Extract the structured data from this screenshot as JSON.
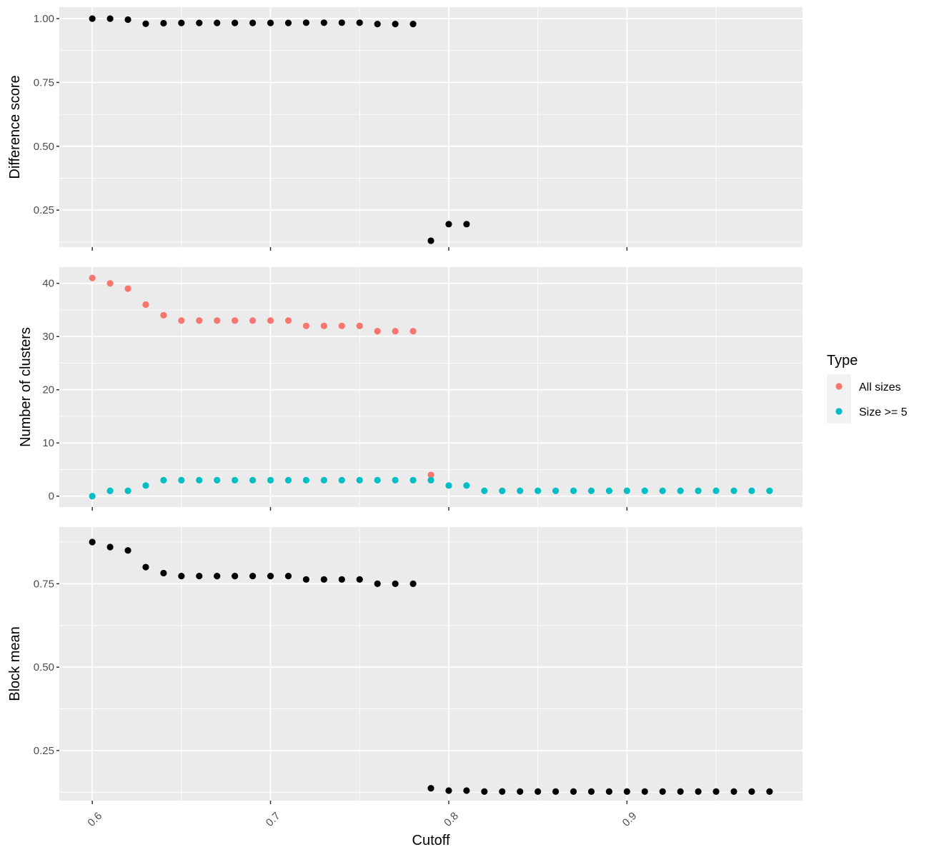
{
  "chart_data": {
    "type": "scatter",
    "xlabel": "Cutoff",
    "x_ticks": [
      0.6,
      0.7,
      0.8,
      0.9
    ],
    "x_tick_labels": [
      "0.6",
      "0.7",
      "0.8",
      "0.9"
    ],
    "xlim": [
      0.5815,
      0.9985
    ],
    "grid": true,
    "panel_background": "#ebebeb",
    "grid_color": "#ffffff",
    "legend": {
      "title": "Type",
      "placement": "right",
      "entries": [
        {
          "label": "All sizes",
          "color": "#f8766d"
        },
        {
          "label": "Size >= 5",
          "color": "#00bfc4"
        }
      ]
    },
    "panels": [
      {
        "ylabel": "Difference score",
        "ylim": [
          0.105,
          1.045
        ],
        "y_ticks": [
          0.25,
          0.5,
          0.75,
          1.0
        ],
        "y_tick_labels": [
          "0.25",
          "0.50",
          "0.75",
          "1.00"
        ],
        "series": [
          {
            "color": "#000000",
            "x": [
              0.6,
              0.61,
              0.62,
              0.63,
              0.64,
              0.65,
              0.66,
              0.67,
              0.68,
              0.69,
              0.7,
              0.71,
              0.72,
              0.73,
              0.74,
              0.75,
              0.76,
              0.77,
              0.78,
              0.79,
              0.8,
              0.81
            ],
            "y": [
              1.0,
              1.0,
              0.996,
              0.98,
              0.982,
              0.983,
              0.983,
              0.983,
              0.983,
              0.983,
              0.983,
              0.983,
              0.984,
              0.984,
              0.984,
              0.984,
              0.979,
              0.979,
              0.979,
              0.13,
              0.195,
              0.195
            ]
          }
        ]
      },
      {
        "ylabel": "Number of clusters",
        "ylim": [
          -2.05,
          43.05
        ],
        "y_ticks": [
          0,
          10,
          20,
          30,
          40
        ],
        "y_tick_labels": [
          "0",
          "10",
          "20",
          "30",
          "40"
        ],
        "series": [
          {
            "name": "All sizes",
            "color": "#f8766d",
            "x": [
              0.6,
              0.61,
              0.62,
              0.63,
              0.64,
              0.65,
              0.66,
              0.67,
              0.68,
              0.69,
              0.7,
              0.71,
              0.72,
              0.73,
              0.74,
              0.75,
              0.76,
              0.77,
              0.78,
              0.79
            ],
            "y": [
              41,
              40,
              39,
              36,
              34,
              33,
              33,
              33,
              33,
              33,
              33,
              33,
              32,
              32,
              32,
              32,
              31,
              31,
              31,
              4
            ]
          },
          {
            "name": "Size >= 5",
            "color": "#00bfc4",
            "x": [
              0.6,
              0.61,
              0.62,
              0.63,
              0.64,
              0.65,
              0.66,
              0.67,
              0.68,
              0.69,
              0.7,
              0.71,
              0.72,
              0.73,
              0.74,
              0.75,
              0.76,
              0.77,
              0.78,
              0.79,
              0.8,
              0.81,
              0.82,
              0.83,
              0.84,
              0.85,
              0.86,
              0.87,
              0.88,
              0.89,
              0.9,
              0.91,
              0.92,
              0.93,
              0.94,
              0.95,
              0.96,
              0.97,
              0.98
            ],
            "y": [
              0,
              1,
              1,
              2,
              3,
              3,
              3,
              3,
              3,
              3,
              3,
              3,
              3,
              3,
              3,
              3,
              3,
              3,
              3,
              3,
              2,
              2,
              1,
              1,
              1,
              1,
              1,
              1,
              1,
              1,
              1,
              1,
              1,
              1,
              1,
              1,
              1,
              1,
              1
            ]
          }
        ]
      },
      {
        "ylabel": "Block mean",
        "ylim": [
          0.1,
          0.92
        ],
        "y_ticks": [
          0.25,
          0.5,
          0.75
        ],
        "y_tick_labels": [
          "0.25",
          "0.50",
          "0.75"
        ],
        "series": [
          {
            "color": "#000000",
            "x": [
              0.6,
              0.61,
              0.62,
              0.63,
              0.64,
              0.65,
              0.66,
              0.67,
              0.68,
              0.69,
              0.7,
              0.71,
              0.72,
              0.73,
              0.74,
              0.75,
              0.76,
              0.77,
              0.78,
              0.79,
              0.8,
              0.81,
              0.82,
              0.83,
              0.84,
              0.85,
              0.86,
              0.87,
              0.88,
              0.89,
              0.9,
              0.91,
              0.92,
              0.93,
              0.94,
              0.95,
              0.96,
              0.97,
              0.98
            ],
            "y": [
              0.875,
              0.86,
              0.85,
              0.8,
              0.782,
              0.773,
              0.773,
              0.773,
              0.773,
              0.773,
              0.773,
              0.773,
              0.763,
              0.763,
              0.763,
              0.763,
              0.75,
              0.75,
              0.75,
              0.137,
              0.13,
              0.13,
              0.127,
              0.127,
              0.127,
              0.127,
              0.127,
              0.127,
              0.127,
              0.127,
              0.127,
              0.127,
              0.127,
              0.127,
              0.127,
              0.127,
              0.127,
              0.127,
              0.127
            ]
          }
        ]
      }
    ]
  }
}
